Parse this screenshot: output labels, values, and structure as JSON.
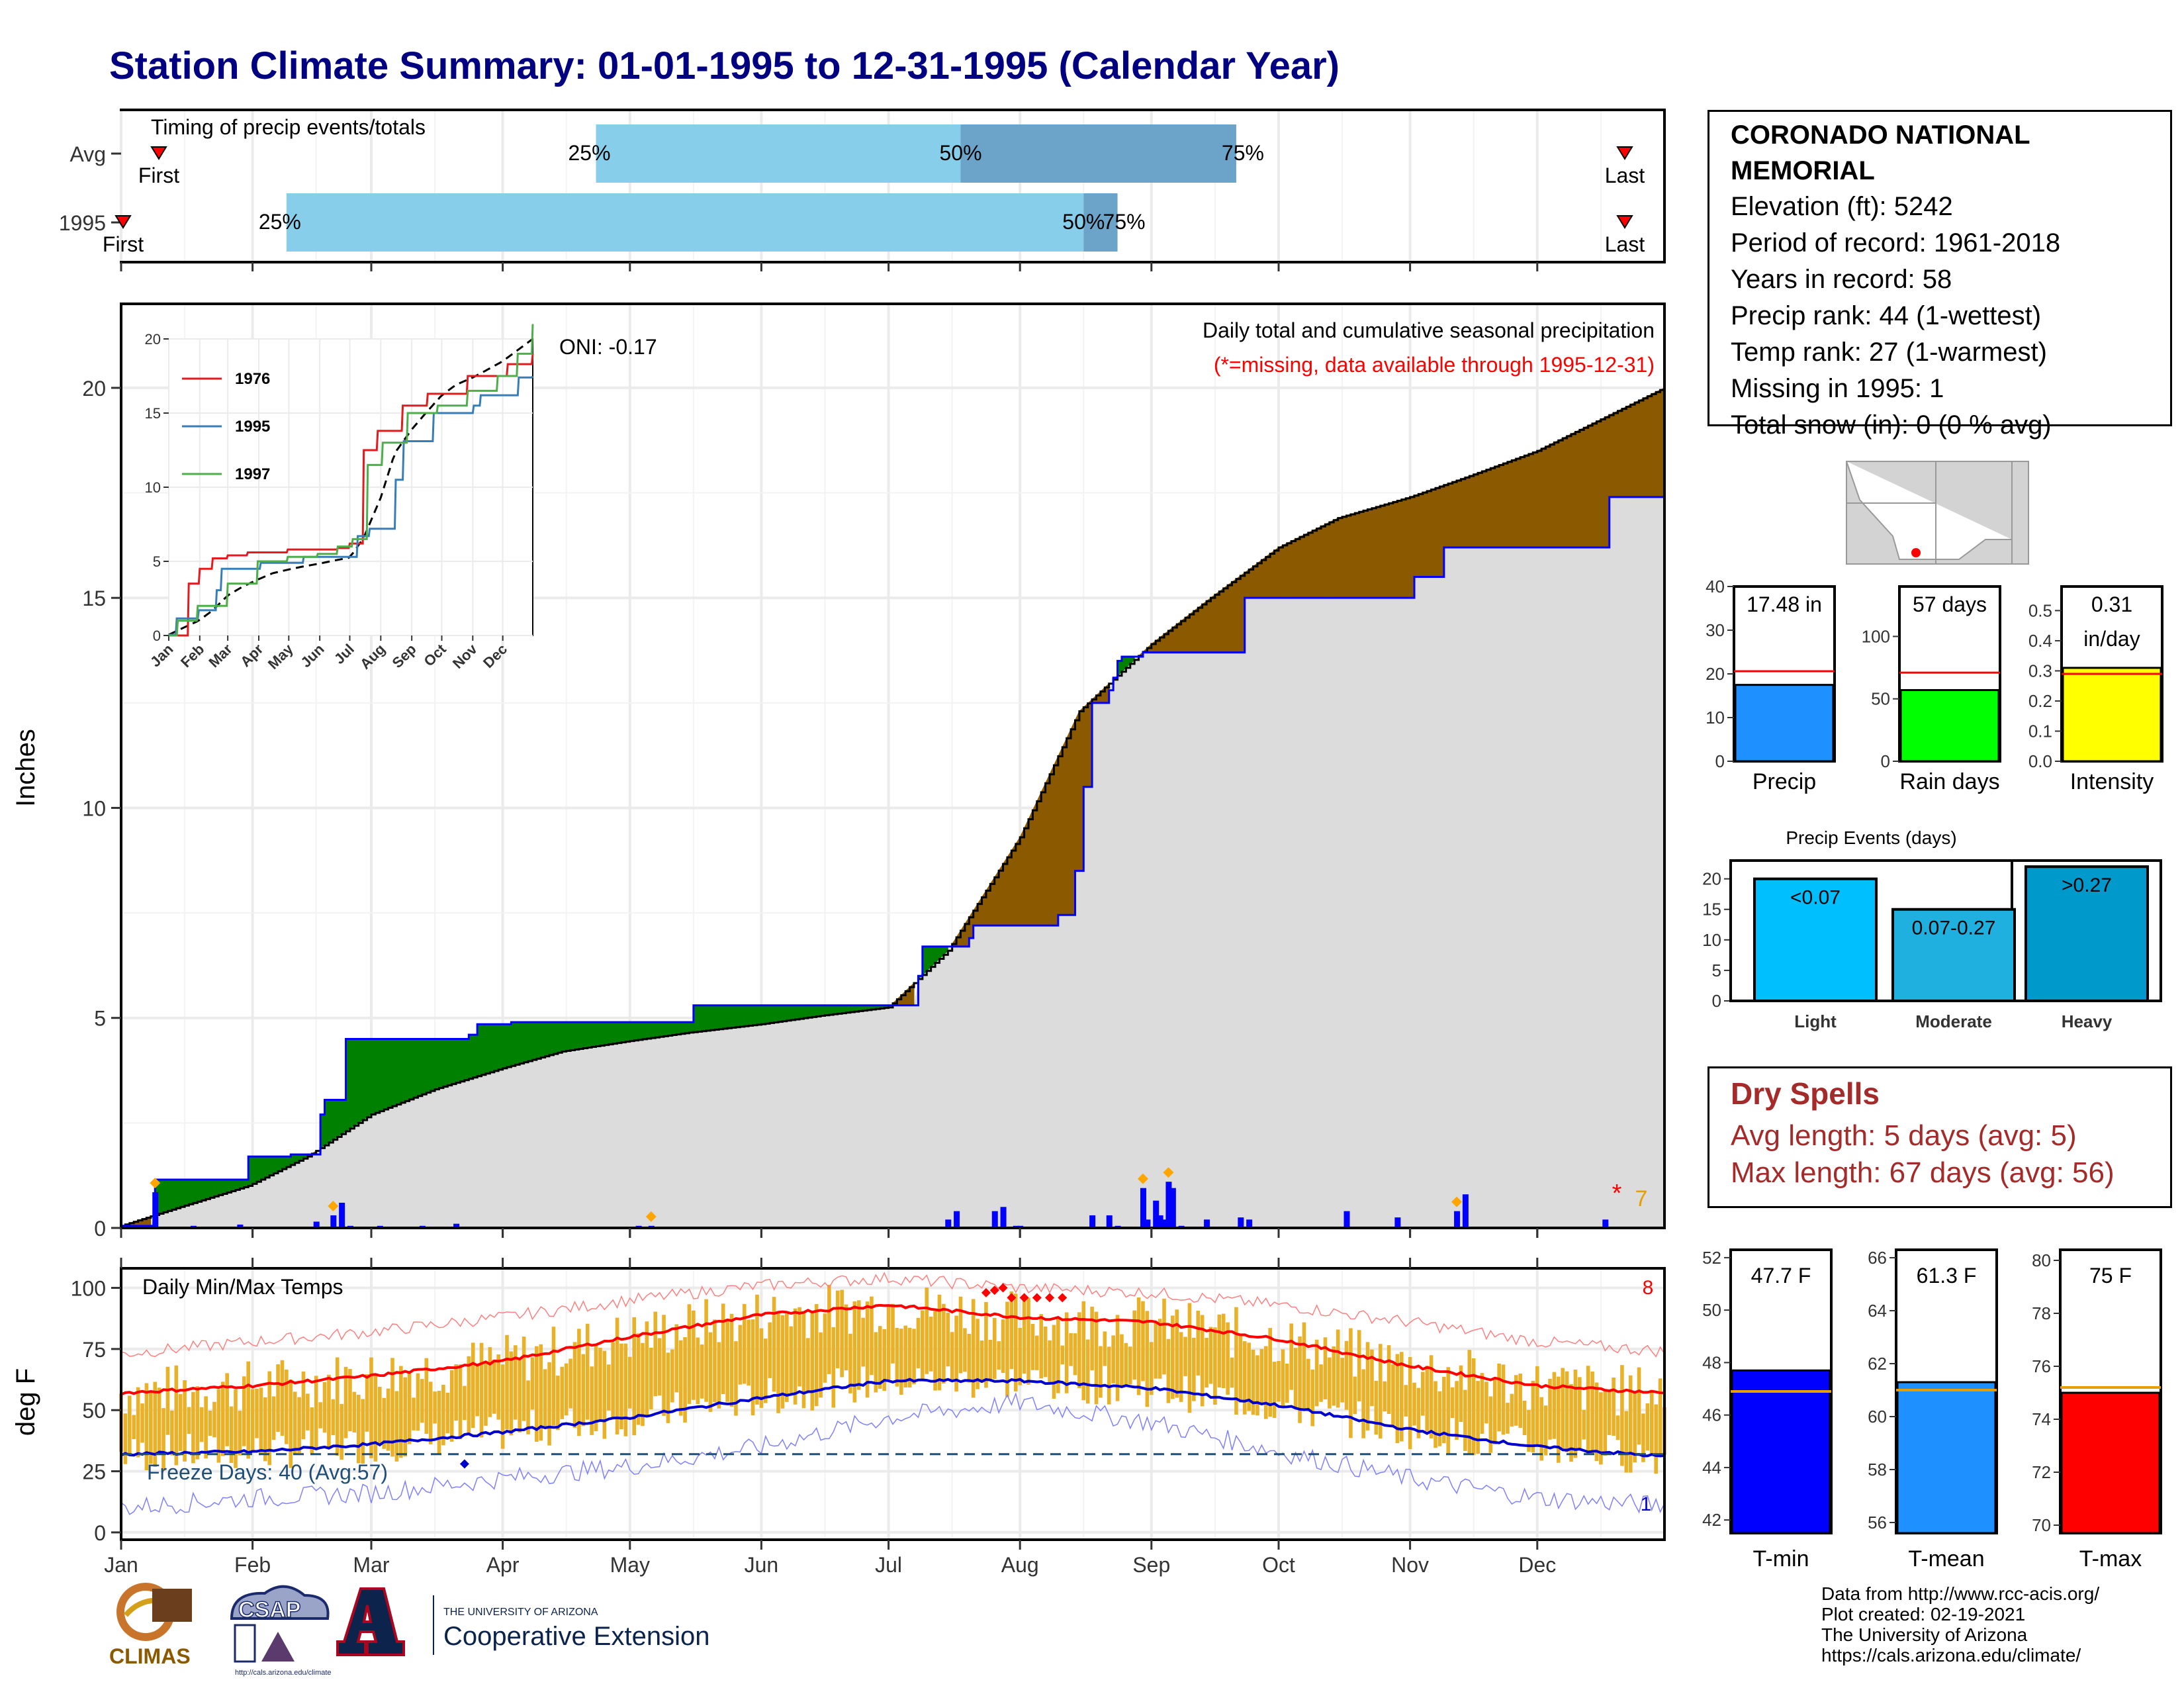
{
  "title": "Station Climate Summary: 01-01-1995 to 12-31-1995 (Calendar Year)",
  "colors": {
    "title": "#000080",
    "lightblue": "#87ceeb",
    "steelblue": "#6ba3c9",
    "deficit": "#8b5a00",
    "surplus": "#008000",
    "normal_area": "#dcdcdc",
    "precip_bar": "#0000ff",
    "temp_bar": "#e9b128",
    "tmax_line": "#ff0000",
    "tmin_line": "#0000cc",
    "freeze_line": "#1f4e79"
  },
  "timing_panel": {
    "title": "Timing of precip events/totals",
    "rows": [
      {
        "label": "Avg",
        "first_label": "First",
        "last_label": "Last",
        "q25": "25%",
        "q50": "50%",
        "q75": "75%",
        "q25_doy": 113,
        "q50_doy": 199,
        "q75_doy": 264
      },
      {
        "label": "1995",
        "first_label": "First",
        "last_label": "Last",
        "q25": "25%",
        "q50": "50%",
        "q75": "75%",
        "q25_doy": 40,
        "q50_doy": 228,
        "q75_doy": 236
      }
    ]
  },
  "precip_panel": {
    "label_top": "Daily total and cumulative seasonal precipitation",
    "label_missing": "(*=missing, data available through 1995-12-31)",
    "oni": "ONI: -0.17",
    "ylabel": "Inches",
    "yticks": [
      "0",
      "5",
      "10",
      "15",
      "20"
    ],
    "missing_count": "7",
    "missing_mark": "*"
  },
  "inset": {
    "yticks": [
      "0",
      "5",
      "10",
      "15",
      "20"
    ],
    "xticks": [
      "Jan",
      "Feb",
      "Mar",
      "Apr",
      "May",
      "Jun",
      "Jul",
      "Aug",
      "Sep",
      "Oct",
      "Nov",
      "Dec"
    ],
    "legend": [
      {
        "name": "1976",
        "color": "#e41a1c"
      },
      {
        "name": "1995",
        "color": "#377eb8"
      },
      {
        "name": "1997",
        "color": "#4daf4a"
      }
    ]
  },
  "temp_panel": {
    "title": "Daily Min/Max Temps",
    "ylabel": "deg F",
    "yticks": [
      "0",
      "25",
      "50",
      "75",
      "100"
    ],
    "freeze_label": "Freeze Days: 40 (Avg:57)",
    "hot_count": "8",
    "cold_count": "1"
  },
  "months": [
    "Jan",
    "Feb",
    "Mar",
    "Apr",
    "May",
    "Jun",
    "Jul",
    "Aug",
    "Sep",
    "Oct",
    "Nov",
    "Dec"
  ],
  "station": {
    "name": "CORONADO NATIONAL MEMORIAL",
    "lines": [
      "Elevation (ft): 5242",
      "Period of record: 1961-2018",
      "Years in record: 58",
      "Precip rank: 44 (1-wettest)",
      "Temp rank: 27 (1-warmest)",
      "Missing in 1995: 1",
      "Total snow (in): 0 (0 % avg)"
    ]
  },
  "summary_bars": [
    {
      "label": "Precip",
      "value_text": "17.48 in",
      "value": 17.48,
      "avg": 20.6,
      "ymax": 40,
      "yticks": [
        "0",
        "10",
        "20",
        "30",
        "40"
      ],
      "tick_vals": [
        0,
        10,
        20,
        30,
        40
      ],
      "color": "#1e90ff"
    },
    {
      "label": "Rain days",
      "value_text": "57 days",
      "value": 57,
      "avg": 71,
      "ymax": 140,
      "yticks": [
        "0",
        "50",
        "100"
      ],
      "tick_vals": [
        0,
        50,
        100
      ],
      "color": "#00ff00"
    },
    {
      "label": "Intensity",
      "value_text": "0.31",
      "value_text2": "in/day",
      "value": 0.31,
      "avg": 0.29,
      "ymax": 0.58,
      "yticks": [
        "0.0",
        "0.1",
        "0.2",
        "0.3",
        "0.4",
        "0.5"
      ],
      "tick_vals": [
        0,
        0.1,
        0.2,
        0.3,
        0.4,
        0.5
      ],
      "color": "#ffff00"
    }
  ],
  "precip_events": {
    "title": "Precip Events (days)",
    "yticks": [
      "0",
      "5",
      "10",
      "15",
      "20"
    ],
    "bars": [
      {
        "category": "Light",
        "label": "<0.07",
        "value": 20,
        "color": "#00bfff"
      },
      {
        "category": "Moderate",
        "label": "0.07-0.27",
        "value": 15,
        "color": "#1fb0e0"
      },
      {
        "category": "Heavy",
        "label": ">0.27",
        "value": 22,
        "color": "#0099cc"
      }
    ]
  },
  "dry_spells": {
    "title": "Dry Spells",
    "avg_length": "Avg length: 5 days (avg: 5)",
    "max_length": "Max length: 67 days (avg: 56)"
  },
  "temp_bars": [
    {
      "label": "T-min",
      "value_text": "47.7 F",
      "value": 47.7,
      "avg": 46.9,
      "ymin": 41.5,
      "ymax": 52.3,
      "yticks": [
        "42",
        "44",
        "46",
        "48",
        "50",
        "52"
      ],
      "tick_vals": [
        42,
        44,
        46,
        48,
        50,
        52
      ],
      "color": "#0000ff"
    },
    {
      "label": "T-mean",
      "value_text": "61.3 F",
      "value": 61.3,
      "avg": 61.0,
      "ymin": 55.6,
      "ymax": 66.3,
      "yticks": [
        "56",
        "58",
        "60",
        "62",
        "64",
        "66"
      ],
      "tick_vals": [
        56,
        58,
        60,
        62,
        64,
        66
      ],
      "color": "#1e90ff"
    },
    {
      "label": "T-max",
      "value_text": "75 F",
      "value": 75.0,
      "avg": 75.2,
      "ymin": 69.7,
      "ymax": 80.4,
      "yticks": [
        "70",
        "72",
        "74",
        "76",
        "78",
        "80"
      ],
      "tick_vals": [
        70,
        72,
        74,
        76,
        78,
        80
      ],
      "color": "#ff0000"
    }
  ],
  "credits": [
    "Data from http://www.rcc-acis.org/",
    "Plot created: 02-19-2021",
    "The University of Arizona",
    "https://cals.arizona.edu/climate/"
  ],
  "logos": {
    "climas": "CLIMAS",
    "csap": "CSAP",
    "ua_small": "THE UNIVERSITY OF ARIZONA",
    "ua_big": "Cooperative Extension",
    "csap_url": "http://cals.arizona.edu/climate"
  },
  "chart_data": [
    {
      "type": "area",
      "title": "Daily total and cumulative seasonal precipitation",
      "ylabel": "Inches",
      "ylim": [
        0,
        22
      ],
      "x_axis": "day of year 1995",
      "observed_cumulative": {
        "name": "1995",
        "x": [
          1,
          9,
          31,
          41,
          48,
          49,
          54,
          83,
          85,
          93,
          136,
          166,
          182,
          189,
          190,
          201,
          202,
          222,
          226,
          228,
          230,
          234,
          235,
          236,
          237,
          242,
          266,
          268,
          306,
          313,
          351,
          352,
          365
        ],
        "y": [
          0.05,
          1.15,
          1.7,
          1.75,
          2.7,
          3.05,
          4.5,
          4.6,
          4.85,
          4.9,
          5.3,
          5.3,
          5.3,
          6.0,
          6.7,
          6.9,
          7.2,
          7.45,
          8.5,
          10.5,
          12.5,
          12.8,
          13.1,
          13.5,
          13.6,
          13.7,
          15.0,
          15.0,
          15.5,
          16.2,
          16.2,
          17.4,
          17.48
        ]
      },
      "average_cumulative": {
        "x": [
          1,
          15,
          31,
          45,
          60,
          75,
          91,
          105,
          121,
          135,
          152,
          166,
          182,
          196,
          213,
          227,
          244,
          258,
          274,
          288,
          305,
          319,
          335,
          349,
          365
        ],
        "y": [
          0.05,
          0.5,
          1.0,
          1.7,
          2.7,
          3.3,
          3.8,
          4.2,
          4.45,
          4.65,
          4.85,
          5.05,
          5.25,
          6.6,
          9.3,
          12.3,
          13.9,
          15.0,
          16.2,
          16.9,
          17.4,
          17.9,
          18.5,
          19.2,
          20.0
        ]
      },
      "daily_precip": {
        "x": [
          2,
          9,
          18,
          29,
          47,
          51,
          53,
          55,
          62,
          72,
          80,
          123,
          126,
          131,
          196,
          198,
          207,
          209,
          212,
          213,
          230,
          234,
          236,
          242,
          243,
          245,
          246,
          247,
          248,
          249,
          251,
          257,
          265,
          267,
          290,
          302,
          316,
          318,
          351
        ],
        "y": [
          0.05,
          0.85,
          0.05,
          0.08,
          0.15,
          0.3,
          0.6,
          0.05,
          0.05,
          0.05,
          0.1,
          0.05,
          0.05,
          0.03,
          0.2,
          0.4,
          0.4,
          0.5,
          0.05,
          0.05,
          0.3,
          0.3,
          0.05,
          0.95,
          0.2,
          0.65,
          0.3,
          0.2,
          1.1,
          0.95,
          0.05,
          0.2,
          0.25,
          0.2,
          0.4,
          0.25,
          0.4,
          0.8,
          0.2
        ]
      },
      "oni": -0.17
    },
    {
      "type": "line",
      "title": "Daily Min/Max Temps",
      "ylabel": "deg F",
      "ylim": [
        -3,
        108
      ],
      "x_axis": "day of year 1995",
      "series": [
        {
          "name": "avg max",
          "x": [
            1,
            32,
            60,
            91,
            121,
            152,
            182,
            213,
            244,
            274,
            305,
            335,
            365
          ],
          "y": [
            57,
            60,
            64,
            70,
            80,
            89,
            93,
            88,
            86,
            79,
            68,
            60,
            57
          ]
        },
        {
          "name": "avg min",
          "x": [
            1,
            32,
            60,
            91,
            121,
            152,
            182,
            213,
            244,
            274,
            305,
            335,
            365
          ],
          "y": [
            32,
            33,
            36,
            41,
            47,
            55,
            62,
            62,
            59,
            52,
            42,
            35,
            31
          ]
        },
        {
          "name": "record max",
          "x": [
            1,
            32,
            60,
            91,
            121,
            152,
            182,
            213,
            244,
            274,
            305,
            335,
            365
          ],
          "y": [
            73,
            78,
            82,
            88,
            95,
            101,
            104,
            100,
            98,
            93,
            86,
            78,
            74
          ]
        },
        {
          "name": "record min",
          "x": [
            1,
            32,
            60,
            91,
            121,
            152,
            182,
            213,
            244,
            274,
            305,
            335,
            365
          ],
          "y": [
            10,
            14,
            16,
            22,
            27,
            35,
            47,
            53,
            45,
            33,
            22,
            14,
            11
          ]
        }
      ],
      "freeze_line": 32,
      "freeze_days": 40,
      "freeze_days_avg": 57
    }
  ]
}
